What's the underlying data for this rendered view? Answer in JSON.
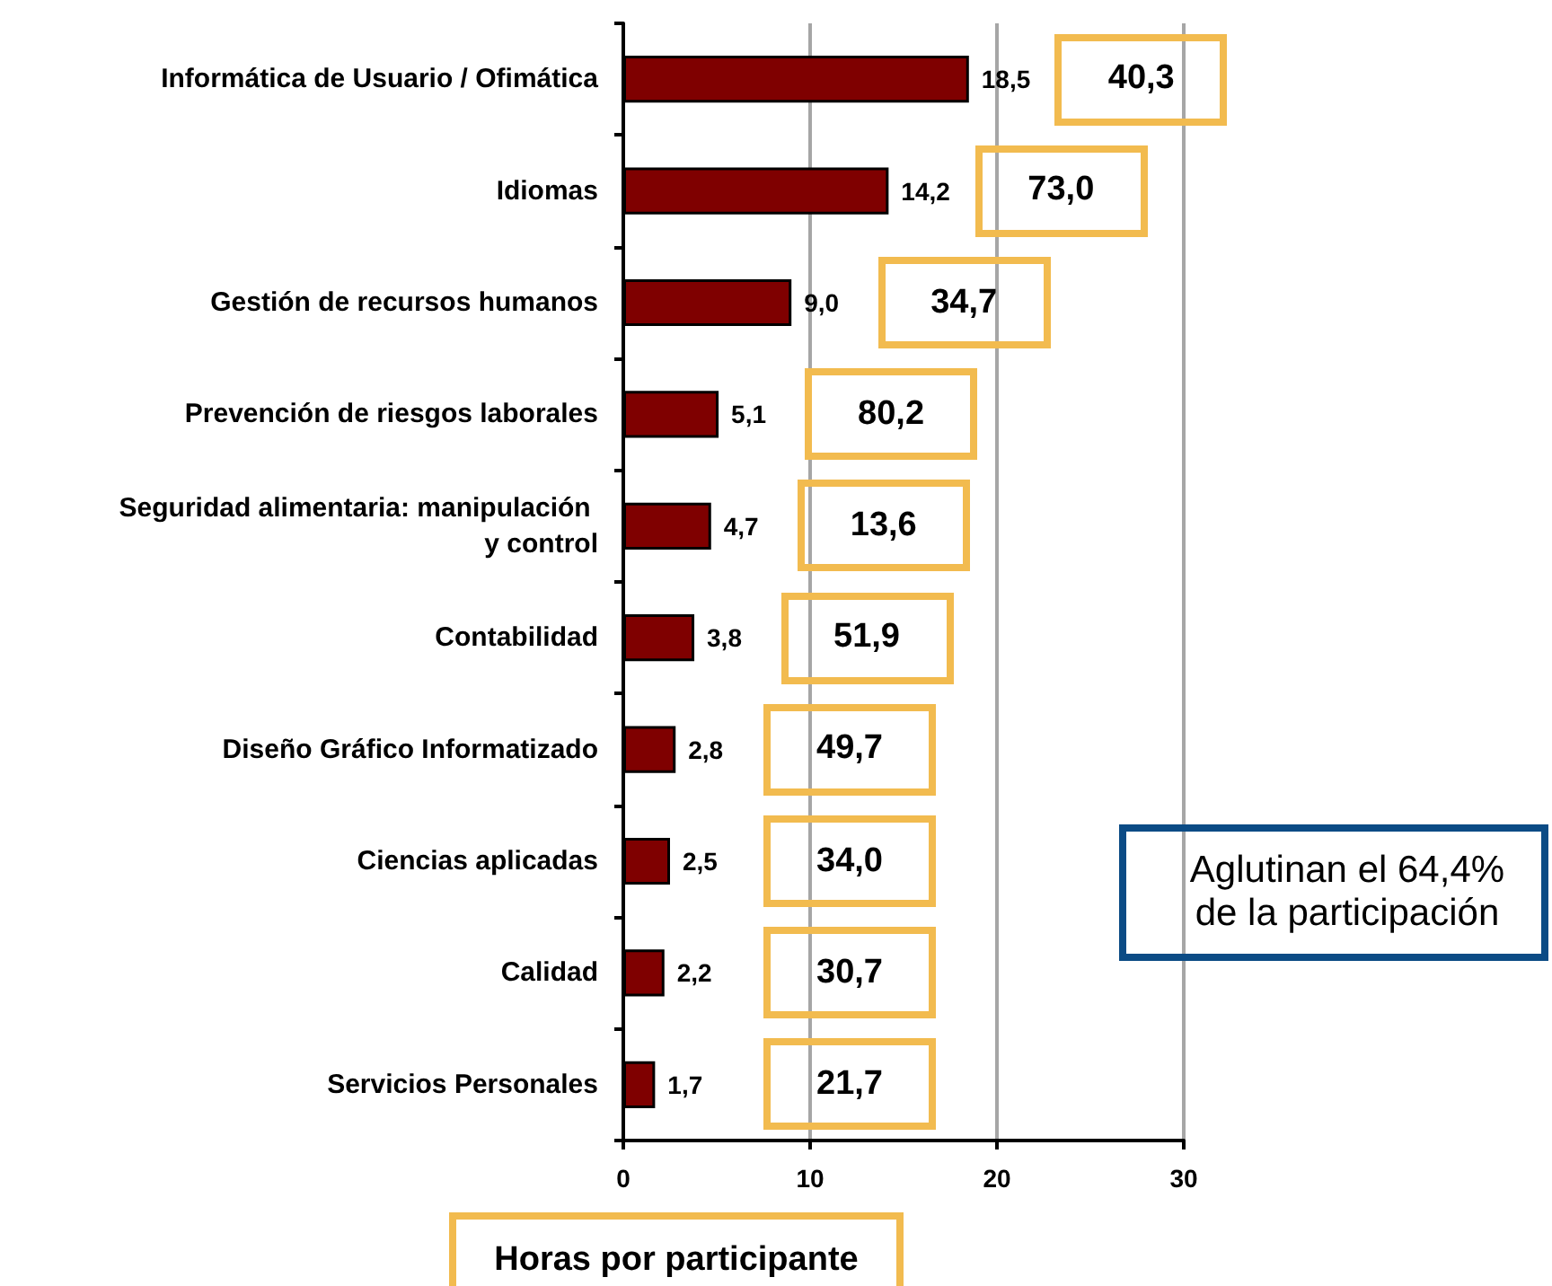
{
  "chart_data": {
    "type": "bar",
    "orientation": "horizontal",
    "categories": [
      "Informática de Usuario / Ofimática",
      "Idiomas",
      "Gestión de recursos humanos",
      "Prevención de riesgos laborales",
      "Seguridad alimentaria: manipulación y control",
      "Contabilidad",
      "Diseño Gráfico Informatizado",
      "Ciencias aplicadas",
      "Calidad",
      "Servicios Personales"
    ],
    "values": [
      18.5,
      14.2,
      9.0,
      5.1,
      4.7,
      3.8,
      2.8,
      2.5,
      2.2,
      1.7
    ],
    "value_labels": [
      "18,5",
      "14,2",
      "9,0",
      "5,1",
      "4,7",
      "3,8",
      "2,8",
      "2,5",
      "2,2",
      "1,7"
    ],
    "color": "#7f0000",
    "xlim": [
      0,
      30
    ],
    "xticks": [
      0,
      10,
      20,
      30
    ],
    "grid": "x",
    "annotations": [
      "40,3",
      "73,0",
      "34,7",
      "80,2",
      "13,6",
      "51,9",
      "49,7",
      "34,0",
      "30,7",
      "21,7",
      "Aglutinan el 64,4% de la participación",
      "Horas por participante"
    ]
  }
}
